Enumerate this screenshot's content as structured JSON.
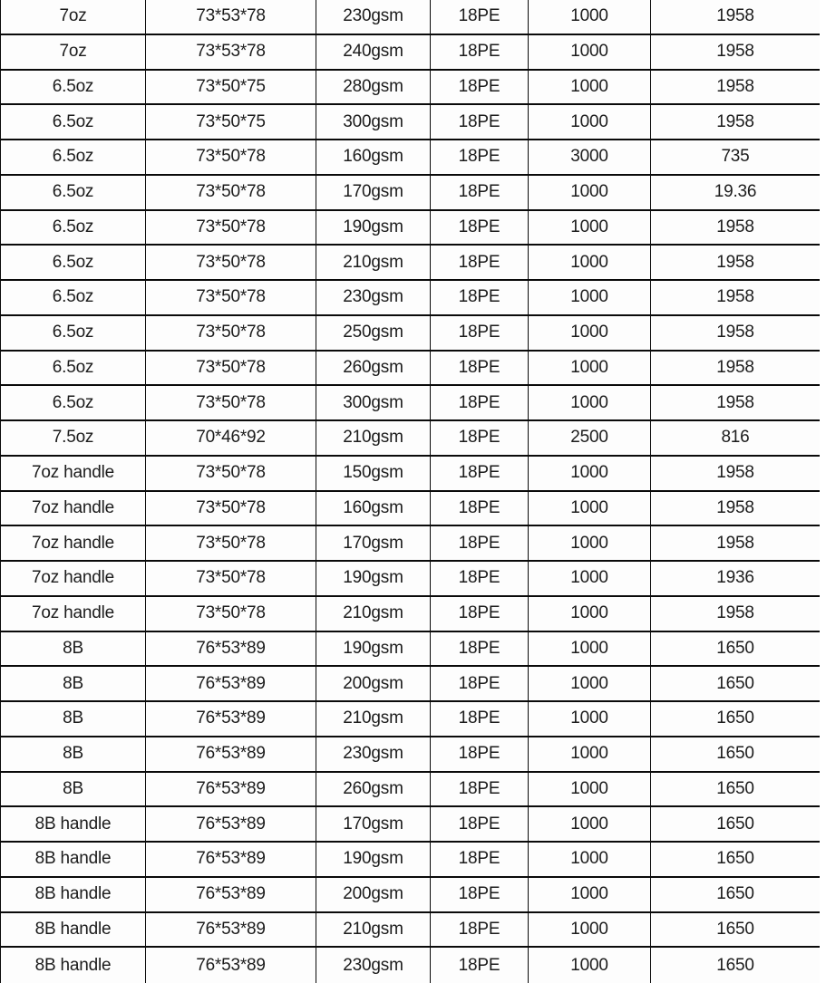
{
  "chart_data": {
    "type": "table",
    "title": "",
    "grid": true,
    "header_visible": false,
    "columns_visible_count": 6,
    "border_color": "#0a0a0a",
    "text_color": "#1c1c1c",
    "background_color": "#fdfdfd",
    "rows": [
      [
        "7oz",
        "73*53*78",
        "230gsm",
        "18PE",
        "1000",
        "1958"
      ],
      [
        "7oz",
        "73*53*78",
        "240gsm",
        "18PE",
        "1000",
        "1958"
      ],
      [
        "6.5oz",
        "73*50*75",
        "280gsm",
        "18PE",
        "1000",
        "1958"
      ],
      [
        "6.5oz",
        "73*50*75",
        "300gsm",
        "18PE",
        "1000",
        "1958"
      ],
      [
        "6.5oz",
        "73*50*78",
        "160gsm",
        "18PE",
        "3000",
        "735"
      ],
      [
        "6.5oz",
        "73*50*78",
        "170gsm",
        "18PE",
        "1000",
        "19.36"
      ],
      [
        "6.5oz",
        "73*50*78",
        "190gsm",
        "18PE",
        "1000",
        "1958"
      ],
      [
        "6.5oz",
        "73*50*78",
        "210gsm",
        "18PE",
        "1000",
        "1958"
      ],
      [
        "6.5oz",
        "73*50*78",
        "230gsm",
        "18PE",
        "1000",
        "1958"
      ],
      [
        "6.5oz",
        "73*50*78",
        "250gsm",
        "18PE",
        "1000",
        "1958"
      ],
      [
        "6.5oz",
        "73*50*78",
        "260gsm",
        "18PE",
        "1000",
        "1958"
      ],
      [
        "6.5oz",
        "73*50*78",
        "300gsm",
        "18PE",
        "1000",
        "1958"
      ],
      [
        "7.5oz",
        "70*46*92",
        "210gsm",
        "18PE",
        "2500",
        "816"
      ],
      [
        "7oz handle",
        "73*50*78",
        "150gsm",
        "18PE",
        "1000",
        "1958"
      ],
      [
        "7oz handle",
        "73*50*78",
        "160gsm",
        "18PE",
        "1000",
        "1958"
      ],
      [
        "7oz handle",
        "73*50*78",
        "170gsm",
        "18PE",
        "1000",
        "1958"
      ],
      [
        "7oz handle",
        "73*50*78",
        "190gsm",
        "18PE",
        "1000",
        "1936"
      ],
      [
        "7oz handle",
        "73*50*78",
        "210gsm",
        "18PE",
        "1000",
        "1958"
      ],
      [
        "8B",
        "76*53*89",
        "190gsm",
        "18PE",
        "1000",
        "1650"
      ],
      [
        "8B",
        "76*53*89",
        "200gsm",
        "18PE",
        "1000",
        "1650"
      ],
      [
        "8B",
        "76*53*89",
        "210gsm",
        "18PE",
        "1000",
        "1650"
      ],
      [
        "8B",
        "76*53*89",
        "230gsm",
        "18PE",
        "1000",
        "1650"
      ],
      [
        "8B",
        "76*53*89",
        "260gsm",
        "18PE",
        "1000",
        "1650"
      ],
      [
        "8B handle",
        "76*53*89",
        "170gsm",
        "18PE",
        "1000",
        "1650"
      ],
      [
        "8B handle",
        "76*53*89",
        "190gsm",
        "18PE",
        "1000",
        "1650"
      ],
      [
        "8B handle",
        "76*53*89",
        "200gsm",
        "18PE",
        "1000",
        "1650"
      ],
      [
        "8B handle",
        "76*53*89",
        "210gsm",
        "18PE",
        "1000",
        "1650"
      ],
      [
        "8B handle",
        "76*53*89",
        "230gsm",
        "18PE",
        "1000",
        "1650"
      ]
    ]
  }
}
